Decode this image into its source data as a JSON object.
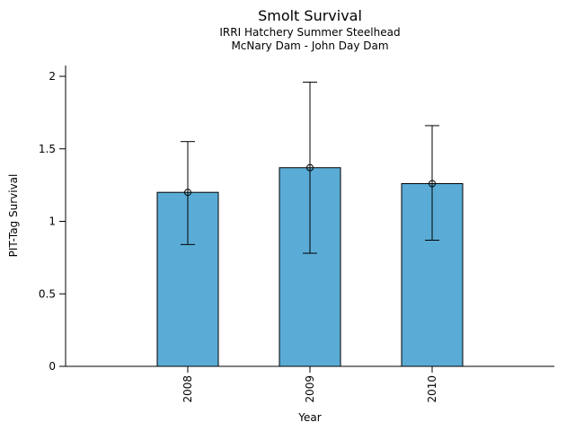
{
  "chart_data": {
    "type": "bar",
    "title": "Smolt Survival",
    "subtitle_line1": "IRRI Hatchery Summer Steelhead",
    "subtitle_line2": "McNary Dam - John Day Dam",
    "xlabel": "Year",
    "ylabel": "PIT-Tag Survival",
    "categories": [
      "2008",
      "2009",
      "2010"
    ],
    "values": [
      1.2,
      1.37,
      1.26
    ],
    "error_low": [
      0.84,
      0.78,
      0.87
    ],
    "error_high": [
      1.55,
      1.96,
      1.66
    ],
    "ylim": [
      0,
      2
    ],
    "yticks": [
      0,
      0.5,
      1,
      1.5,
      2
    ],
    "ytick_labels": [
      "0",
      "0.5",
      "1",
      "1.5",
      "2"
    ],
    "xtick_rotation_deg": -90,
    "grid": false,
    "legend_position": "none",
    "bar_color": "#5aacd6",
    "bar_edge_color": "#000000",
    "error_color": "#000000",
    "marker": "open-circle",
    "axis_color": "#000000",
    "background_color": "#ffffff"
  }
}
